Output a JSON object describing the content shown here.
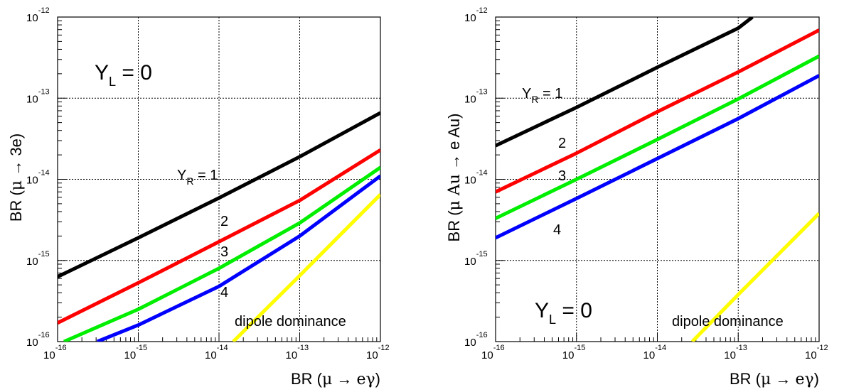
{
  "chart_data": [
    {
      "type": "line",
      "scale": "log-log",
      "xlim": [
        1e-16,
        1e-12
      ],
      "ylim": [
        1e-16,
        1e-12
      ],
      "grid": true,
      "grid_style": "dotted",
      "xlabel": {
        "prefix": "BR (",
        "mu": "μ",
        "arrow": "→",
        "final": "eγ",
        "suffix": ")"
      },
      "ylabel": {
        "prefix": "BR (",
        "mu": "μ",
        "arrow": "→",
        "final": "3e",
        "suffix": ")"
      },
      "x_tick_exponents": [
        "-16",
        "-15",
        "-14",
        "-13",
        "-12"
      ],
      "y_tick_exponents": [
        "-16",
        "-15",
        "-14",
        "-13",
        "-12"
      ],
      "tick_base": "10",
      "annotation_regime": {
        "base": "Y",
        "sub": "L",
        "eq": " = 0"
      },
      "annotation_dipole": "dipole dominance",
      "series": [
        {
          "label_base": "Y",
          "label_sub": "R",
          "label_eq": " = 1",
          "color": "#000000",
          "points": [
            [
              1e-16,
              6.3e-16
            ],
            [
              1e-15,
              1.9e-15
            ],
            [
              1e-14,
              5.9e-15
            ],
            [
              1e-13,
              1.9e-14
            ],
            [
              1e-12,
              6.6e-14
            ]
          ]
        },
        {
          "label": "2",
          "color": "#ff0000",
          "points": [
            [
              1e-16,
              1.7e-16
            ],
            [
              1e-15,
              5.3e-16
            ],
            [
              1e-14,
              1.7e-15
            ],
            [
              1e-13,
              5.5e-15
            ],
            [
              1e-12,
              2.3e-14
            ]
          ]
        },
        {
          "label": "3",
          "color": "#00ee00",
          "points": [
            [
              1.2e-16,
              1e-16
            ],
            [
              1e-15,
              2.5e-16
            ],
            [
              1e-14,
              8e-16
            ],
            [
              1e-13,
              2.9e-15
            ],
            [
              1e-12,
              1.4e-14
            ]
          ]
        },
        {
          "label": "4",
          "color": "#0000ff",
          "points": [
            [
              3.1e-16,
              1e-16
            ],
            [
              1e-15,
              1.6e-16
            ],
            [
              1e-14,
              4.8e-16
            ],
            [
              1e-13,
              2e-15
            ],
            [
              1e-12,
              1.1e-14
            ]
          ]
        },
        {
          "color": "#ffff00",
          "points": [
            [
              1.5e-14,
              1e-16
            ],
            [
              1e-13,
              6.5e-16
            ],
            [
              1e-12,
              6.5e-15
            ]
          ]
        }
      ]
    },
    {
      "type": "line",
      "scale": "log-log",
      "xlim": [
        1e-16,
        1e-12
      ],
      "ylim": [
        1e-16,
        1e-12
      ],
      "grid": true,
      "grid_style": "dotted",
      "xlabel": {
        "prefix": "BR (",
        "mu": "μ",
        "arrow": "→",
        "final": "eγ",
        "suffix": ")"
      },
      "ylabel": {
        "prefix": "BR (",
        "mu": "μ Au",
        "arrow": "→",
        "final": "e Au",
        "suffix": ")"
      },
      "x_tick_exponents": [
        "-16",
        "-15",
        "-14",
        "-13",
        "-12"
      ],
      "y_tick_exponents": [
        "-16",
        "-15",
        "-14",
        "-13",
        "-12"
      ],
      "tick_base": "10",
      "annotation_regime": {
        "base": "Y",
        "sub": "L",
        "eq": " = 0"
      },
      "annotation_dipole": "dipole dominance",
      "series": [
        {
          "label_base": "Y",
          "label_sub": "R",
          "label_eq": " = 1",
          "color": "#000000",
          "points": [
            [
              1e-16,
              2.6e-14
            ],
            [
              1e-15,
              7.7e-14
            ],
            [
              1e-14,
              2.4e-13
            ],
            [
              1e-13,
              7.3e-13
            ],
            [
              1.5e-13,
              1e-12
            ]
          ]
        },
        {
          "label": "2",
          "color": "#ff0000",
          "points": [
            [
              1e-16,
              7e-15
            ],
            [
              1e-15,
              2.1e-14
            ],
            [
              1e-14,
              6.8e-14
            ],
            [
              1e-13,
              2.1e-13
            ],
            [
              1e-12,
              6.9e-13
            ]
          ]
        },
        {
          "label": "3",
          "color": "#00ee00",
          "points": [
            [
              1e-16,
              3.3e-15
            ],
            [
              1e-15,
              1e-14
            ],
            [
              1e-14,
              3.1e-14
            ],
            [
              1e-13,
              9.8e-14
            ],
            [
              1e-12,
              3.3e-13
            ]
          ]
        },
        {
          "label": "4",
          "color": "#0000ff",
          "points": [
            [
              1e-16,
              1.9e-15
            ],
            [
              1e-15,
              5.8e-15
            ],
            [
              1e-14,
              1.8e-14
            ],
            [
              1e-13,
              5.6e-14
            ],
            [
              1e-12,
              1.9e-13
            ]
          ]
        },
        {
          "color": "#ffff00",
          "points": [
            [
              2.7e-14,
              1e-16
            ],
            [
              1e-13,
              3.8e-16
            ],
            [
              1e-12,
              3.8e-15
            ]
          ]
        }
      ]
    }
  ]
}
